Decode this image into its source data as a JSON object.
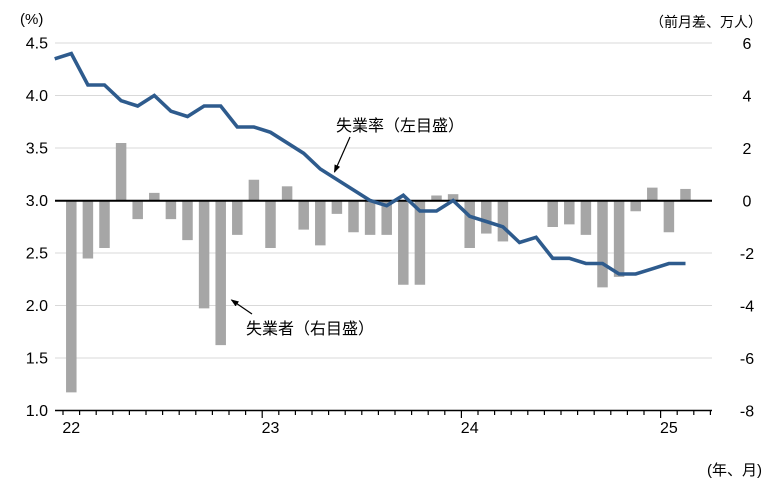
{
  "annotations": {
    "rate_label": "失業率（左目盛）",
    "unemployed_label": "失業者（右目盛）"
  },
  "colors": {
    "line": "#2e5b8d",
    "bar": "#a6a6a6",
    "gridline": "#d9d9d9",
    "axis": "#000000",
    "background": "#ffffff"
  },
  "chart_data": {
    "type": "combo bar + line",
    "title": "",
    "months": [
      "2021-12",
      "2022-01",
      "2022-02",
      "2022-03",
      "2022-04",
      "2022-05",
      "2022-06",
      "2022-07",
      "2022-08",
      "2022-09",
      "2022-10",
      "2022-11",
      "2022-12",
      "2023-01",
      "2023-02",
      "2023-03",
      "2023-04",
      "2023-05",
      "2023-06",
      "2023-07",
      "2023-08",
      "2023-09",
      "2023-10",
      "2023-11",
      "2023-12",
      "2024-01",
      "2024-02",
      "2024-03",
      "2024-04",
      "2024-05",
      "2024-06",
      "2024-07",
      "2024-08",
      "2024-09",
      "2024-10",
      "2024-11",
      "2024-12",
      "2025-01",
      "2025-02"
    ],
    "series": [
      {
        "name": "失業率（左目盛）",
        "type": "line",
        "axis": "left",
        "unit": "%",
        "values": [
          4.35,
          4.4,
          4.1,
          4.1,
          3.95,
          3.9,
          4.0,
          3.85,
          3.8,
          3.9,
          3.9,
          3.7,
          3.7,
          3.65,
          3.55,
          3.45,
          3.3,
          3.2,
          3.1,
          3.0,
          2.95,
          3.05,
          2.9,
          2.9,
          3.0,
          2.85,
          2.8,
          2.75,
          2.6,
          2.65,
          2.45,
          2.45,
          2.4,
          2.4,
          2.3,
          2.3,
          2.35,
          2.4,
          2.4
        ]
      },
      {
        "name": "失業者（右目盛）",
        "type": "bar",
        "axis": "right",
        "unit": "万人",
        "values": [
          null,
          -7.3,
          -2.2,
          -1.8,
          2.2,
          -0.7,
          0.3,
          -0.7,
          -1.5,
          -4.1,
          -5.5,
          -1.3,
          0.8,
          -1.8,
          0.55,
          -1.1,
          -1.7,
          -0.5,
          -1.2,
          -1.3,
          -1.3,
          -3.2,
          -3.2,
          0.2,
          0.25,
          -1.8,
          -1.25,
          -1.55,
          0,
          0,
          -1.0,
          -0.9,
          -1.3,
          -3.3,
          -2.9,
          -0.4,
          0.5,
          -1.2,
          0.45
        ]
      }
    ],
    "left_axis": {
      "label": "(%)",
      "min": 1.0,
      "max": 4.5,
      "tick_values": [
        4.5,
        4.0,
        3.5,
        3.0,
        2.5,
        2.0,
        1.5,
        1.0
      ],
      "tick_labels": [
        "4.5",
        "4.0",
        "3.5",
        "3.0",
        "2.5",
        "2.0",
        "1.5",
        "1.0"
      ]
    },
    "right_axis": {
      "label": "（前月差、万人）",
      "min": -8,
      "max": 6,
      "tick_values": [
        6,
        4,
        2,
        0,
        -2,
        -4,
        -6,
        -8
      ],
      "tick_labels": [
        "6",
        "4",
        "2",
        "0",
        "-2",
        "-4",
        "-6",
        "-8"
      ]
    },
    "x_axis": {
      "label": "(年、月)",
      "year_labels": [
        "22",
        "23",
        "24",
        "25"
      ],
      "year_label_month_index": [
        1,
        13,
        25,
        37
      ]
    },
    "zero_reference": "left 3.0 aligns with right 0",
    "grid": true,
    "legend": "inline text annotations with arrows"
  }
}
